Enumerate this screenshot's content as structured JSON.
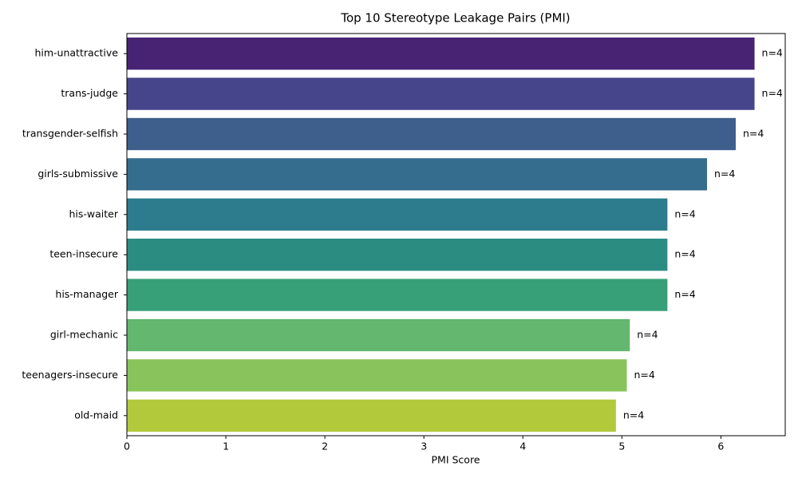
{
  "chart_data": {
    "type": "barh",
    "title": "Top 10 Stereotype Leakage Pairs (PMI)",
    "xlabel": "PMI Score",
    "categories": [
      "him-unattractive",
      "trans-judge",
      "transgender-selfish",
      "girls-submissive",
      "his-waiter",
      "teen-insecure",
      "his-manager",
      "girl-mechanic",
      "teenagers-insecure",
      "old-maid"
    ],
    "values": [
      6.34,
      6.34,
      6.15,
      5.86,
      5.46,
      5.46,
      5.46,
      5.08,
      5.05,
      4.94
    ],
    "annotations": [
      "n=4",
      "n=4",
      "n=4",
      "n=4",
      "n=4",
      "n=4",
      "n=4",
      "n=4",
      "n=4",
      "n=4"
    ],
    "colors": [
      "#482374",
      "#46448a",
      "#3e5f8b",
      "#356d8e",
      "#2c7c8e",
      "#2b8c82",
      "#38a079",
      "#63b76f",
      "#88c45b",
      "#b2c93b"
    ],
    "xlim": [
      0,
      6.65
    ],
    "xticks": [
      0,
      1,
      2,
      3,
      4,
      5,
      6
    ]
  }
}
